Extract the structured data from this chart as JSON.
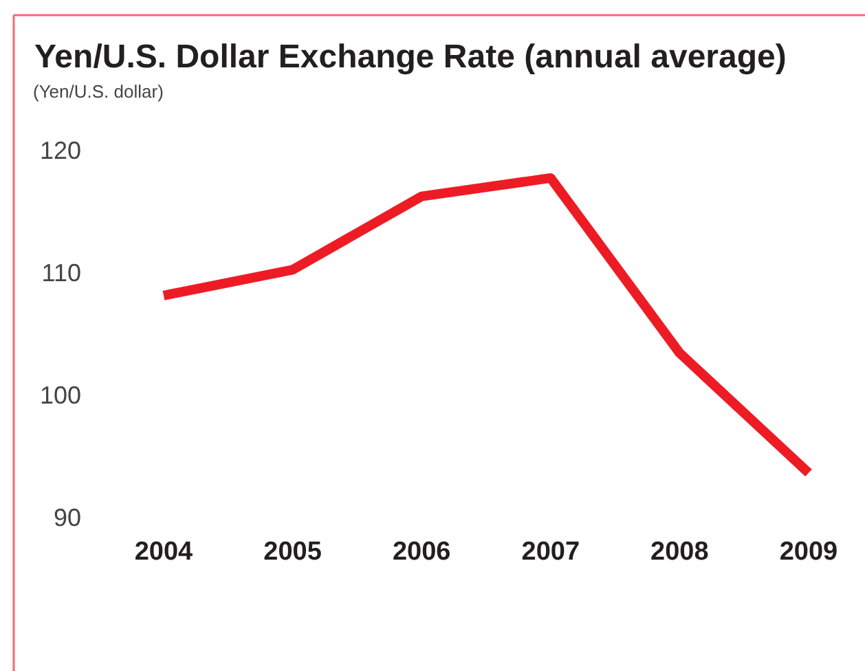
{
  "chart_data": {
    "type": "line",
    "title": "Yen/U.S. Dollar Exchange Rate (annual average)",
    "ylabel": "(Yen/U.S. dollar)",
    "categories": [
      "2004",
      "2005",
      "2006",
      "2007",
      "2008",
      "2009"
    ],
    "series": [
      {
        "color": "#ed1c24",
        "values": [
          108.1,
          110.2,
          116.2,
          117.7,
          103.4,
          93.6
        ]
      }
    ],
    "ylim": [
      90,
      120
    ],
    "yticks": [
      90,
      100,
      110,
      120
    ],
    "grid": false,
    "marker": "none",
    "line_style": "solid"
  }
}
